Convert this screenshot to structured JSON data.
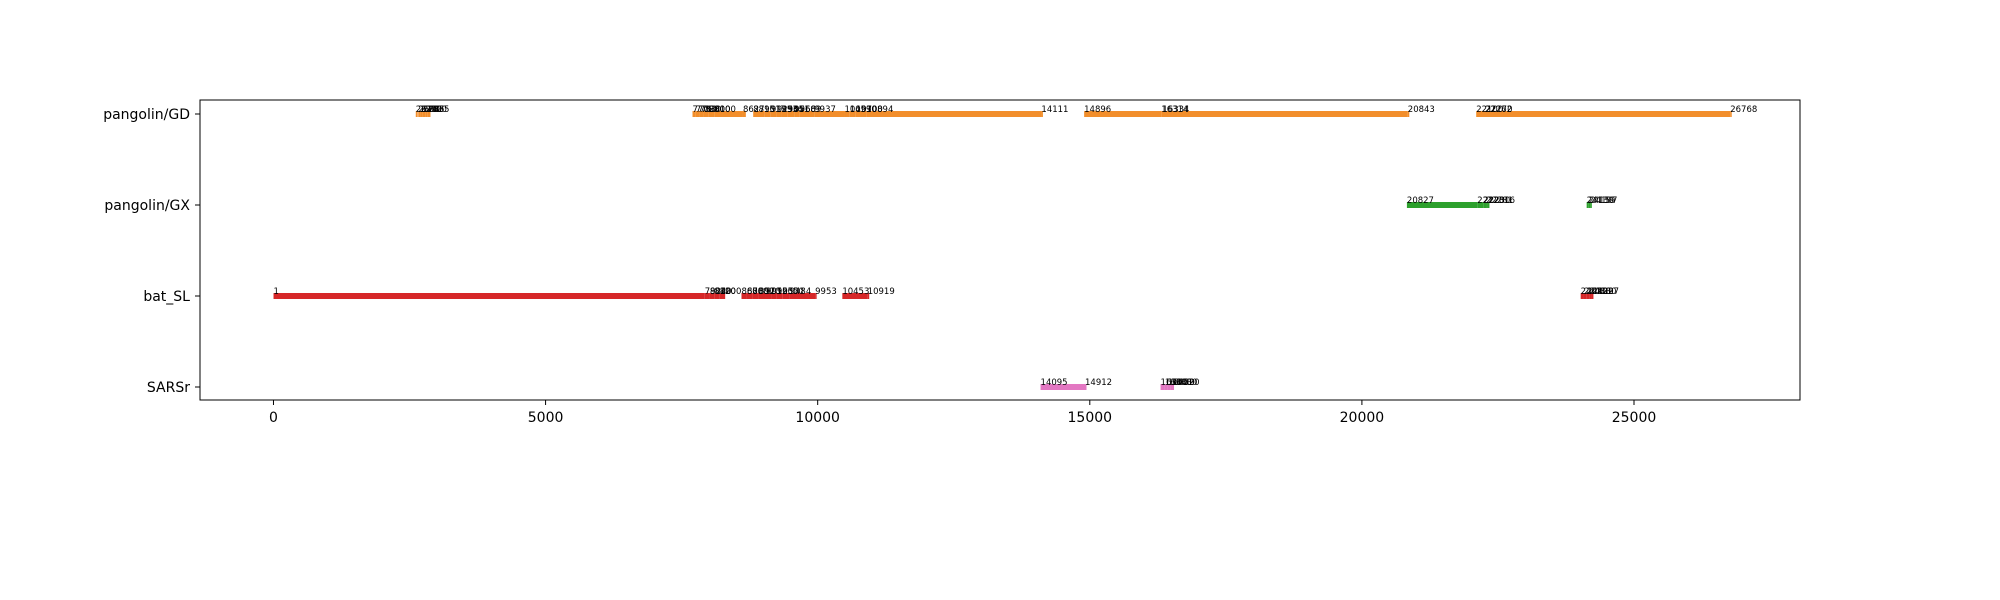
{
  "chart_data": {
    "type": "bar",
    "orientation": "horizontal-segments",
    "title": "",
    "xlabel": "",
    "ylabel": "",
    "xlim": [
      -1350,
      28050
    ],
    "xticks": [
      0,
      5000,
      10000,
      15000,
      20000,
      25000
    ],
    "xtick_labels": [
      "0",
      "5000",
      "10000",
      "15000",
      "20000",
      "25000"
    ],
    "categories": [
      "pangolin/GD",
      "pangolin/GX",
      "bat_SL",
      "SARSr"
    ],
    "grid": false,
    "legend": "none",
    "series": [
      {
        "category": "pangolin/GD",
        "color": "#f28e2b",
        "segments": [
          {
            "start": 2615,
            "end": 2650,
            "label": "2615"
          },
          {
            "start": 2660,
            "end": 2700,
            "label": "2660"
          },
          {
            "start": 2700,
            "end": 2745,
            "label": "2700"
          },
          {
            "start": 2745,
            "end": 2790,
            "label": "2745"
          },
          {
            "start": 2790,
            "end": 2835,
            "label": "2790"
          },
          {
            "start": 2835,
            "end": 2885,
            "label": "2835"
          },
          {
            "start": 7700,
            "end": 7760,
            "label": "7700"
          },
          {
            "start": 7760,
            "end": 7830,
            "label": "7760"
          },
          {
            "start": 7830,
            "end": 7900,
            "label": "7830"
          },
          {
            "start": 7900,
            "end": 8000,
            "label": "7900"
          },
          {
            "start": 8000,
            "end": 8100,
            "label": "8000"
          },
          {
            "start": 8100,
            "end": 8627,
            "label": "8100"
          },
          {
            "start": 8627,
            "end": 8680,
            "label": "8627"
          },
          {
            "start": 8815,
            "end": 9017,
            "label": "8815"
          },
          {
            "start": 9017,
            "end": 9139,
            "label": "9017"
          },
          {
            "start": 9139,
            "end": 9250,
            "label": "9139"
          },
          {
            "start": 9250,
            "end": 9334,
            "label": "9250"
          },
          {
            "start": 9334,
            "end": 9451,
            "label": "9334"
          },
          {
            "start": 9451,
            "end": 9568,
            "label": "9451"
          },
          {
            "start": 9568,
            "end": 9669,
            "label": "9568"
          },
          {
            "start": 9669,
            "end": 9937,
            "label": "9669"
          },
          {
            "start": 9937,
            "end": 10493,
            "label": "9937"
          },
          {
            "start": 10493,
            "end": 10590,
            "label": "10493"
          },
          {
            "start": 10590,
            "end": 10700,
            "label": "10590"
          },
          {
            "start": 10700,
            "end": 10894,
            "label": "10700"
          },
          {
            "start": 10894,
            "end": 14111,
            "label": "10894"
          },
          {
            "start": 14111,
            "end": 14111,
            "label": "14111"
          },
          {
            "start": 14896,
            "end": 16314,
            "label": "14896"
          },
          {
            "start": 16314,
            "end": 16334,
            "label": "16314"
          },
          {
            "start": 16334,
            "end": 20843,
            "label": "16334"
          },
          {
            "start": 20843,
            "end": 20843,
            "label": "20843"
          },
          {
            "start": 22100,
            "end": 22262,
            "label": "22100"
          },
          {
            "start": 22262,
            "end": 22270,
            "label": "22262"
          },
          {
            "start": 22270,
            "end": 26768,
            "label": "22270"
          },
          {
            "start": 26768,
            "end": 26768,
            "label": "26768"
          }
        ]
      },
      {
        "category": "pangolin/GX",
        "color": "#2ca02c",
        "segments": [
          {
            "start": 20827,
            "end": 22120,
            "label": "20827"
          },
          {
            "start": 22120,
            "end": 22230,
            "label": "22120"
          },
          {
            "start": 22230,
            "end": 22281,
            "label": "22230"
          },
          {
            "start": 22281,
            "end": 22316,
            "label": "22281"
          },
          {
            "start": 22316,
            "end": 22316,
            "label": "22316"
          },
          {
            "start": 24130,
            "end": 24159,
            "label": "24130"
          },
          {
            "start": 24159,
            "end": 24197,
            "label": "24159"
          },
          {
            "start": 24197,
            "end": 24197,
            "label": "24197"
          }
        ]
      },
      {
        "category": "bat_SL",
        "color": "#d62728",
        "segments": [
          {
            "start": 1,
            "end": 7924,
            "label": "1"
          },
          {
            "start": 7924,
            "end": 8020,
            "label": "7924"
          },
          {
            "start": 8020,
            "end": 8100,
            "label": "8020"
          },
          {
            "start": 8100,
            "end": 8200,
            "label": "8100"
          },
          {
            "start": 8200,
            "end": 8300,
            "label": "8200"
          },
          {
            "start": 8600,
            "end": 8700,
            "label": "8600"
          },
          {
            "start": 8700,
            "end": 8800,
            "label": "8700"
          },
          {
            "start": 8800,
            "end": 8920,
            "label": "8800"
          },
          {
            "start": 8920,
            "end": 9050,
            "label": "8920"
          },
          {
            "start": 9050,
            "end": 9150,
            "label": "9050"
          },
          {
            "start": 9150,
            "end": 9250,
            "label": "9150"
          },
          {
            "start": 9250,
            "end": 9350,
            "label": "9250"
          },
          {
            "start": 9350,
            "end": 9484,
            "label": "9350"
          },
          {
            "start": 9484,
            "end": 9953,
            "label": "9484"
          },
          {
            "start": 9953,
            "end": 9953,
            "label": "9953"
          },
          {
            "start": 10453,
            "end": 10919,
            "label": "10453"
          },
          {
            "start": 10919,
            "end": 10919,
            "label": "10919"
          },
          {
            "start": 24020,
            "end": 24080,
            "label": "24020"
          },
          {
            "start": 24080,
            "end": 24130,
            "label": "24080"
          },
          {
            "start": 24130,
            "end": 24180,
            "label": "24130"
          },
          {
            "start": 24180,
            "end": 24227,
            "label": "24180"
          },
          {
            "start": 24227,
            "end": 24227,
            "label": "24227"
          }
        ]
      },
      {
        "category": "SARSr",
        "color": "#e377c2",
        "segments": [
          {
            "start": 14095,
            "end": 14912,
            "label": "14095"
          },
          {
            "start": 14912,
            "end": 14912,
            "label": "14912"
          },
          {
            "start": 16300,
            "end": 16380,
            "label": "16300"
          },
          {
            "start": 16380,
            "end": 16430,
            "label": "16380"
          },
          {
            "start": 16430,
            "end": 16480,
            "label": "16430"
          },
          {
            "start": 16480,
            "end": 16520,
            "label": "16480"
          },
          {
            "start": 16520,
            "end": 16520,
            "label": "16520"
          }
        ]
      }
    ]
  }
}
